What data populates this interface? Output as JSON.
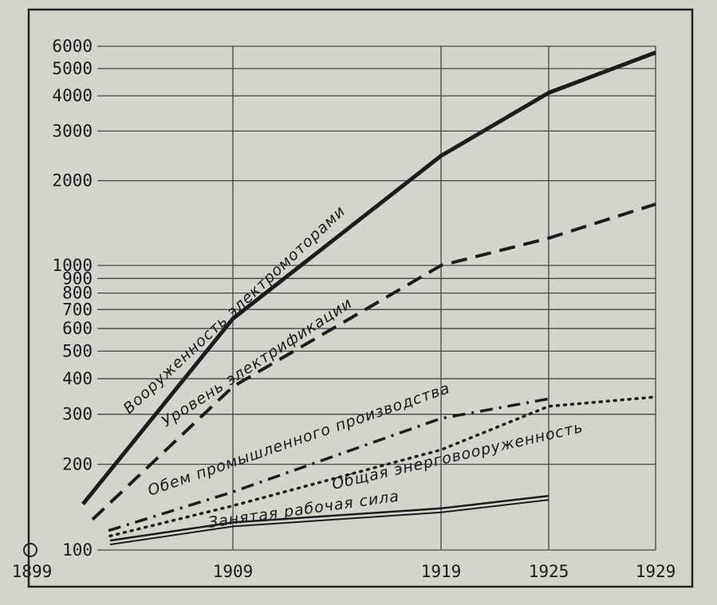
{
  "chart_data": {
    "type": "line",
    "title": "",
    "xlabel": "",
    "ylabel": "",
    "y_scale": "log",
    "ylim": [
      100,
      6000
    ],
    "xlim": [
      1899,
      1929
    ],
    "grid": true,
    "x_ticks": [
      "1899",
      "1909",
      "1919",
      "1925",
      "1929"
    ],
    "y_ticks": [
      "100",
      "200",
      "300",
      "400",
      "500",
      "600",
      "700",
      "800",
      "900",
      "1000",
      "2000",
      "3000",
      "4000",
      "5000",
      "6000"
    ],
    "series": [
      {
        "name": "Вооруженность электромоторами",
        "style": "solid-thick",
        "x": [
          1899,
          1909,
          1919,
          1925,
          1929
        ],
        "y": [
          145,
          650,
          2450,
          4100,
          5700
        ]
      },
      {
        "name": "Уровень электрификации",
        "style": "dashed",
        "x": [
          1899,
          1909,
          1919,
          1925,
          1929
        ],
        "y": [
          128,
          375,
          1000,
          1250,
          1650
        ]
      },
      {
        "name": "Обем промышленного производства",
        "style": "dashdot",
        "x": [
          1899,
          1909,
          1919,
          1925
        ],
        "y": [
          117,
          160,
          290,
          340
        ]
      },
      {
        "name": "Общая энерговооруженность",
        "style": "dotted",
        "x": [
          1899,
          1909,
          1919,
          1925,
          1929
        ],
        "y": [
          112,
          143,
          225,
          320,
          345
        ]
      },
      {
        "name": "Занятая рабочая сила",
        "style": "double",
        "x": [
          1899,
          1909,
          1919,
          1925
        ],
        "y": [
          108,
          125,
          140,
          155
        ]
      }
    ]
  }
}
